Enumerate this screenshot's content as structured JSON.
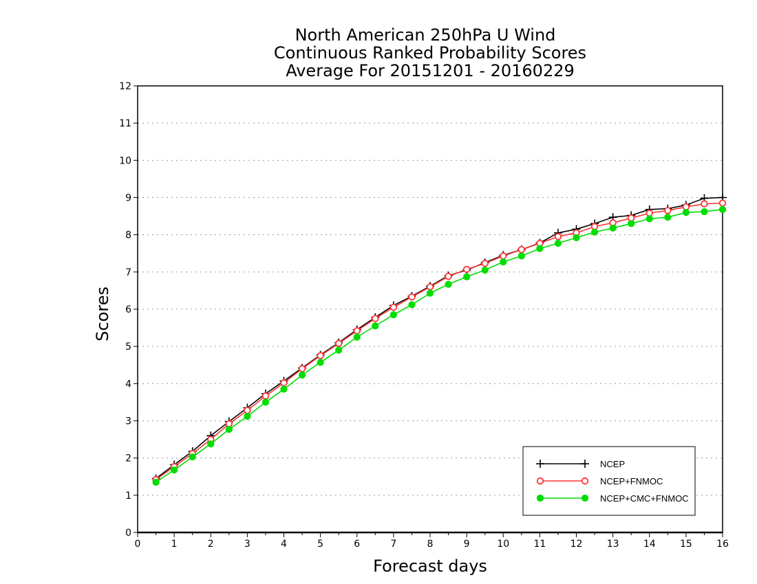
{
  "chart_data": {
    "type": "line",
    "title_lines": [
      "North American 250hPa U Wind",
      "Continuous Ranked Probability Scores",
      "Average For 20151201 - 20160229"
    ],
    "xlabel": "Forecast days",
    "ylabel": "Scores",
    "xlim": [
      0,
      16
    ],
    "ylim": [
      0,
      12
    ],
    "x_ticks": [
      "0",
      "1",
      "2",
      "3",
      "4",
      "5",
      "6",
      "7",
      "8",
      "9",
      "10",
      "11",
      "12",
      "13",
      "14",
      "15",
      "16"
    ],
    "y_ticks": [
      "0",
      "1",
      "2",
      "3",
      "4",
      "5",
      "6",
      "7",
      "8",
      "9",
      "10",
      "11",
      "12"
    ],
    "grid": "horizontal dotted",
    "legend_position": "bottom-right",
    "x": [
      0.5,
      1,
      1.5,
      2,
      2.5,
      3,
      3.5,
      4,
      4.5,
      5,
      5.5,
      6,
      6.5,
      7,
      7.5,
      8,
      8.5,
      9,
      9.5,
      10,
      10.5,
      11,
      11.5,
      12,
      12.5,
      13,
      13.5,
      14,
      14.5,
      15,
      15.5,
      16
    ],
    "series": [
      {
        "name": "NCEP",
        "color": "#000000",
        "marker": "plus",
        "values": [
          1.45,
          1.82,
          2.18,
          2.6,
          2.98,
          3.35,
          3.73,
          4.07,
          4.42,
          4.77,
          5.1,
          5.45,
          5.78,
          6.1,
          6.35,
          6.62,
          6.9,
          7.05,
          7.25,
          7.45,
          7.6,
          7.78,
          8.05,
          8.15,
          8.3,
          8.47,
          8.52,
          8.68,
          8.7,
          8.8,
          8.98,
          9.0
        ]
      },
      {
        "name": "NCEP+FNMOC",
        "color": "#ff3333",
        "marker": "open-circle",
        "values": [
          1.42,
          1.77,
          2.12,
          2.5,
          2.92,
          3.28,
          3.67,
          4.02,
          4.4,
          4.75,
          5.08,
          5.42,
          5.75,
          6.05,
          6.33,
          6.6,
          6.88,
          7.07,
          7.23,
          7.43,
          7.6,
          7.77,
          7.95,
          8.05,
          8.22,
          8.32,
          8.45,
          8.58,
          8.65,
          8.75,
          8.83,
          8.85
        ]
      },
      {
        "name": "NCEP+CMC+FNMOC",
        "color": "#00dd00",
        "marker": "filled-circle",
        "values": [
          1.35,
          1.68,
          2.03,
          2.38,
          2.77,
          3.12,
          3.5,
          3.85,
          4.23,
          4.57,
          4.9,
          5.25,
          5.55,
          5.85,
          6.12,
          6.43,
          6.67,
          6.87,
          7.05,
          7.27,
          7.43,
          7.63,
          7.77,
          7.92,
          8.07,
          8.18,
          8.3,
          8.43,
          8.47,
          8.6,
          8.62,
          8.68
        ]
      }
    ]
  }
}
